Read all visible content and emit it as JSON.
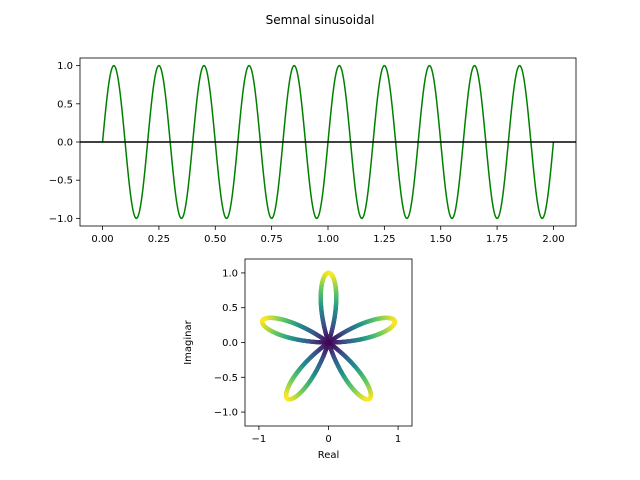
{
  "figure": {
    "title": "Semnal sinusoidal"
  },
  "chart_data": [
    {
      "type": "line",
      "title": "",
      "xlabel": "",
      "ylabel": "",
      "function": "sin(2*pi*5*t)",
      "x_range": [
        0,
        2
      ],
      "xlim": [
        -0.1,
        2.1
      ],
      "ylim": [
        -1.1,
        1.1
      ],
      "series": [
        {
          "color": "#008000"
        }
      ],
      "baseline": {
        "y": 0,
        "color": "#000000"
      },
      "x_ticks": [
        0.0,
        0.25,
        0.5,
        0.75,
        1.0,
        1.25,
        1.5,
        1.75,
        2.0
      ],
      "x_tick_labels": [
        "0.00",
        "0.25",
        "0.50",
        "0.75",
        "1.00",
        "1.25",
        "1.50",
        "1.75",
        "2.00"
      ],
      "y_ticks": [
        -1.0,
        -0.5,
        0.0,
        0.5,
        1.0
      ],
      "y_tick_labels": [
        "−1.0",
        "−0.5",
        "0.0",
        "0.5",
        "1.0"
      ],
      "grid": false
    },
    {
      "type": "scatter",
      "title": "",
      "xlabel": "Real",
      "ylabel": "Imaginar",
      "curve": "rose r = sin(5*theta)",
      "petals": 5,
      "xlim": [
        -1.2,
        1.2
      ],
      "ylim": [
        -1.2,
        1.2
      ],
      "colormap": "viridis",
      "color_by": "magnitude",
      "x_ticks": [
        -1,
        0,
        1
      ],
      "x_tick_labels": [
        "−1",
        "0",
        "1"
      ],
      "y_ticks": [
        -1.0,
        -0.5,
        0.0,
        0.5,
        1.0
      ],
      "y_tick_labels": [
        "−1.0",
        "−0.5",
        "0.0",
        "0.5",
        "1.0"
      ],
      "grid": false
    }
  ]
}
